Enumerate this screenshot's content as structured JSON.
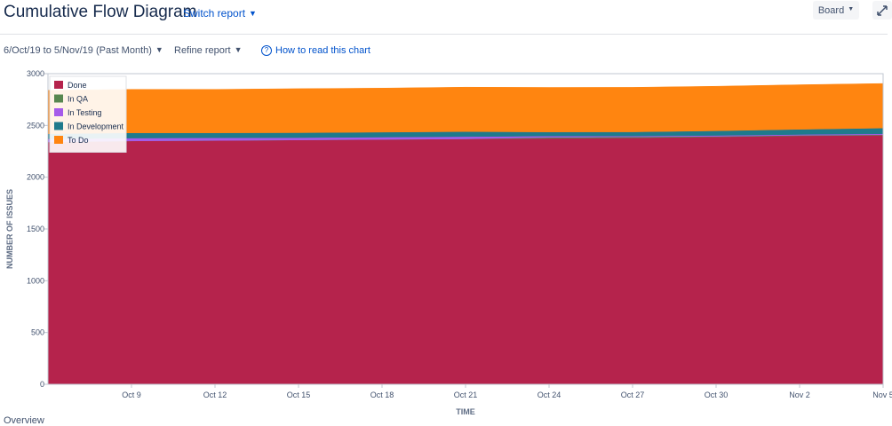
{
  "header": {
    "title": "Cumulative Flow Diagram",
    "switch_report": "Switch report",
    "board_label": "Board",
    "expand_icon": "expand-icon"
  },
  "toolbar": {
    "date_range": "6/Oct/19 to 5/Nov/19 (Past Month)",
    "refine_report": "Refine report",
    "how_to_read": "How to read this chart",
    "help_icon": "help-circle-icon"
  },
  "footer": {
    "overview": "Overview"
  },
  "chart_data": {
    "type": "area",
    "stacked": true,
    "xlabel": "TIME",
    "ylabel": "NUMBER OF ISSUES",
    "ylim": [
      0,
      3000
    ],
    "yticks": [
      0,
      500,
      1000,
      1500,
      2000,
      2500,
      3000
    ],
    "xlim": [
      "2019-10-06",
      "2019-11-05"
    ],
    "xticks": [
      "Oct 9",
      "Oct 12",
      "Oct 15",
      "Oct 18",
      "Oct 21",
      "Oct 24",
      "Oct 27",
      "Oct 30",
      "Nov 2",
      "Nov 5"
    ],
    "xtick_dates": [
      "2019-10-09",
      "2019-10-12",
      "2019-10-15",
      "2019-10-18",
      "2019-10-21",
      "2019-10-24",
      "2019-10-27",
      "2019-10-30",
      "2019-11-02",
      "2019-11-05"
    ],
    "x": [
      "2019-10-06",
      "2019-10-09",
      "2019-10-12",
      "2019-10-15",
      "2019-10-18",
      "2019-10-21",
      "2019-10-24",
      "2019-10-27",
      "2019-10-30",
      "2019-11-02",
      "2019-11-05"
    ],
    "grid": false,
    "legend_position": "top-left",
    "series": [
      {
        "name": "Done",
        "color": "#b5234c",
        "values": [
          2340,
          2350,
          2355,
          2360,
          2365,
          2370,
          2375,
          2380,
          2390,
          2400,
          2405
        ]
      },
      {
        "name": "In QA",
        "color": "#57874f",
        "values": [
          0,
          0,
          0,
          0,
          0,
          0,
          10,
          10,
          5,
          5,
          5
        ]
      },
      {
        "name": "In Testing",
        "color": "#a55bea",
        "values": [
          30,
          28,
          25,
          22,
          22,
          22,
          12,
          8,
          8,
          8,
          10
        ]
      },
      {
        "name": "In Development",
        "color": "#1f7a8c",
        "values": [
          50,
          50,
          48,
          48,
          48,
          48,
          40,
          40,
          45,
          50,
          55
        ]
      },
      {
        "name": "To Do",
        "color": "#ff8510",
        "values": [
          420,
          420,
          420,
          425,
          425,
          430,
          430,
          430,
          430,
          430,
          430
        ]
      }
    ]
  }
}
